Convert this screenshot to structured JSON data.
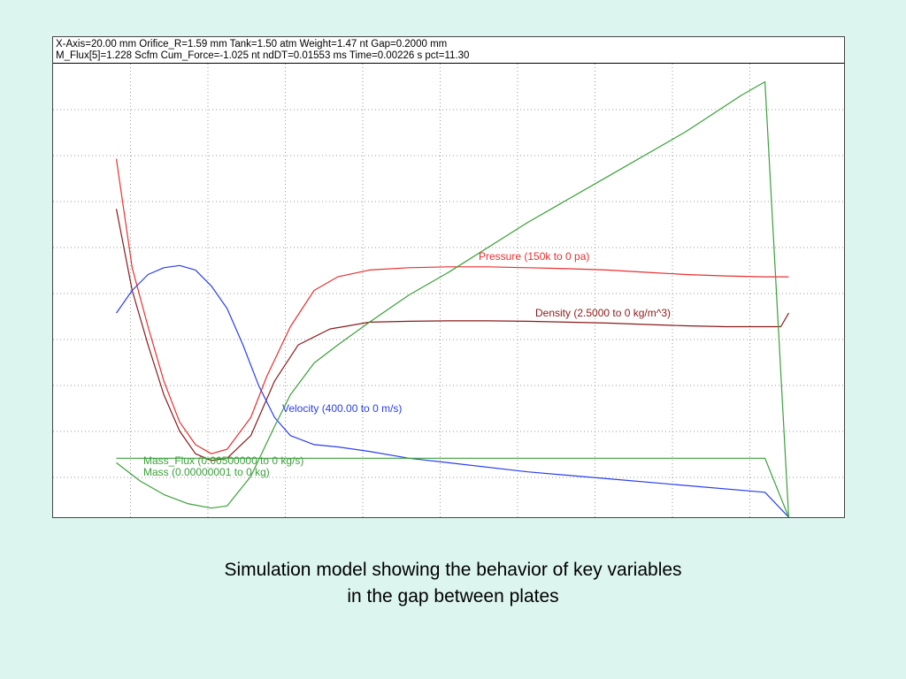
{
  "status": {
    "line1": "X-Axis=20.00 mm  Orifice_R=1.59 mm  Tank=1.50 atm  Weight=1.47 nt  Gap=0.2000 mm",
    "line2": "M_Flux[5]=1.228 Scfm  Cum_Force=-1.025 nt  ndDT=0.01553 ms  Time=0.00226 s  pct=11.30"
  },
  "caption": {
    "line1": "Simulation model showing the behavior of key variables",
    "line2": "in the gap between plates"
  },
  "chart_data": {
    "type": "line",
    "grid": true,
    "xlim": [
      0,
      1
    ],
    "ylim": [
      0,
      1
    ],
    "series": [
      {
        "name": "Pressure (150k to 0 pa)",
        "color": "#e83030",
        "x": [
          0.08,
          0.1,
          0.12,
          0.14,
          0.16,
          0.18,
          0.2,
          0.22,
          0.25,
          0.27,
          0.3,
          0.33,
          0.36,
          0.4,
          0.45,
          0.5,
          0.55,
          0.6,
          0.65,
          0.7,
          0.75,
          0.8,
          0.85,
          0.9,
          0.93
        ],
        "y": [
          0.79,
          0.55,
          0.42,
          0.3,
          0.21,
          0.16,
          0.14,
          0.15,
          0.22,
          0.31,
          0.42,
          0.5,
          0.53,
          0.545,
          0.55,
          0.552,
          0.552,
          0.55,
          0.548,
          0.545,
          0.54,
          0.535,
          0.532,
          0.53,
          0.53
        ]
      },
      {
        "name": "Density (2.5000 to 0 kg/m^3)",
        "color": "#8b1a1a",
        "x": [
          0.08,
          0.1,
          0.12,
          0.14,
          0.16,
          0.18,
          0.2,
          0.22,
          0.25,
          0.28,
          0.31,
          0.35,
          0.4,
          0.45,
          0.5,
          0.55,
          0.6,
          0.65,
          0.7,
          0.75,
          0.8,
          0.85,
          0.9,
          0.92,
          0.93
        ],
        "y": [
          0.68,
          0.5,
          0.38,
          0.27,
          0.19,
          0.14,
          0.125,
          0.13,
          0.18,
          0.3,
          0.38,
          0.415,
          0.43,
          0.432,
          0.433,
          0.433,
          0.432,
          0.43,
          0.428,
          0.425,
          0.422,
          0.42,
          0.42,
          0.42,
          0.45
        ]
      },
      {
        "name": "Velocity (400.00 to 0 m/s)",
        "color": "#2a3ef0",
        "x": [
          0.08,
          0.1,
          0.12,
          0.14,
          0.16,
          0.18,
          0.2,
          0.22,
          0.24,
          0.26,
          0.28,
          0.3,
          0.33,
          0.36,
          0.4,
          0.45,
          0.5,
          0.6,
          0.7,
          0.8,
          0.9,
          0.93
        ],
        "y": [
          0.45,
          0.5,
          0.535,
          0.55,
          0.555,
          0.545,
          0.51,
          0.46,
          0.38,
          0.29,
          0.22,
          0.18,
          0.16,
          0.155,
          0.145,
          0.13,
          0.12,
          0.1,
          0.085,
          0.07,
          0.055,
          0.0
        ]
      },
      {
        "name": "Mass_Flux (0.00500000 to 0 kg/s)",
        "color": "#3aa03a",
        "x": [
          0.08,
          0.9,
          0.93
        ],
        "y": [
          0.13,
          0.13,
          0.0
        ]
      },
      {
        "name": "Mass (0.00000001 to 0 kg)",
        "color": "#3aa03a",
        "x": [
          0.08,
          0.11,
          0.14,
          0.17,
          0.2,
          0.22,
          0.25,
          0.28,
          0.3,
          0.33,
          0.36,
          0.4,
          0.45,
          0.5,
          0.6,
          0.7,
          0.8,
          0.87,
          0.9,
          0.93
        ],
        "y": [
          0.12,
          0.08,
          0.05,
          0.03,
          0.02,
          0.025,
          0.09,
          0.2,
          0.27,
          0.34,
          0.38,
          0.43,
          0.49,
          0.54,
          0.65,
          0.75,
          0.85,
          0.93,
          0.96,
          0.0
        ]
      }
    ]
  }
}
